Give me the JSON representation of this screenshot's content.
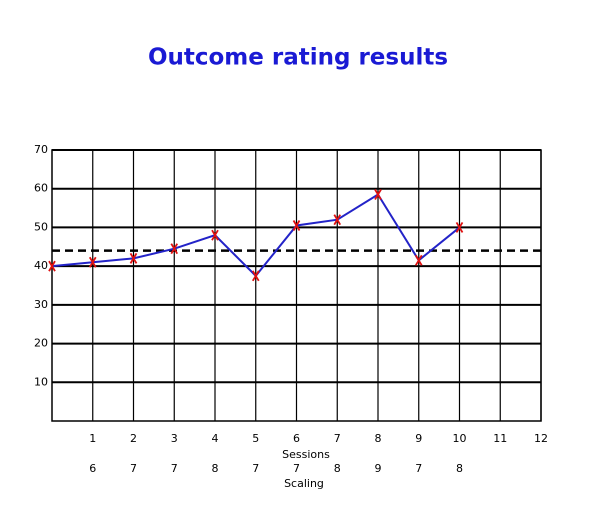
{
  "chart_data": {
    "type": "line",
    "title": "Outcome rating results",
    "x": [
      0,
      1,
      2,
      3,
      4,
      5,
      6,
      7,
      8,
      9,
      10
    ],
    "series": [
      {
        "color": "#2323c8",
        "marker_color": "#e01010",
        "values": [
          40,
          41,
          42,
          44.5,
          48,
          37.5,
          50.5,
          52,
          58.5,
          41.5,
          50
        ]
      }
    ],
    "reference_line": 44,
    "xlim": [
      0,
      12
    ],
    "xticks": [
      1,
      2,
      3,
      4,
      5,
      6,
      7,
      8,
      9,
      10,
      11,
      12
    ],
    "ylim": [
      0,
      70
    ],
    "yticks": [
      10,
      20,
      30,
      40,
      50,
      60,
      70
    ],
    "x_label": "Sessions",
    "scaling": [
      6,
      7,
      7,
      8,
      7,
      7,
      8,
      9,
      7,
      8
    ],
    "scaling_label": "Scaling",
    "grid": true
  }
}
